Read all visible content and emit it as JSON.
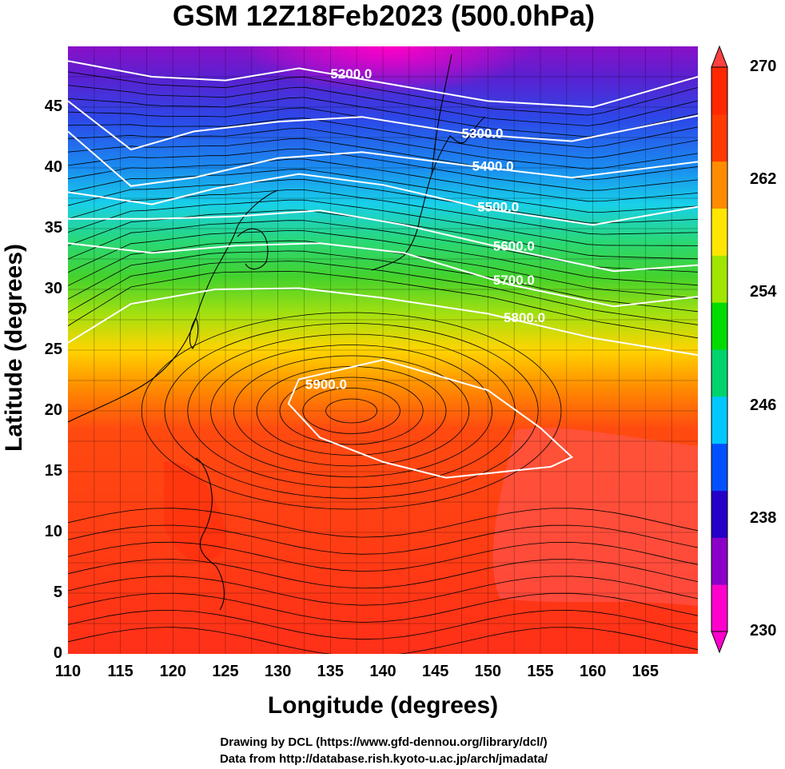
{
  "title": "GSM 12Z18Feb2023 (500.0hPa)",
  "xlabel": "Longitude (degrees)",
  "ylabel": "Latitude  (degrees)",
  "x_ticks": [
    "110",
    "115",
    "120",
    "125",
    "130",
    "135",
    "140",
    "145",
    "150",
    "155",
    "160",
    "165"
  ],
  "y_ticks": [
    "0",
    "5",
    "10",
    "15",
    "20",
    "25",
    "30",
    "35",
    "40",
    "45"
  ],
  "colorbar": {
    "ticks": [
      "270",
      "262",
      "254",
      "246",
      "238",
      "230"
    ],
    "min": 230,
    "max": 270,
    "colors": [
      "#ff00cc",
      "#8b00c8",
      "#2400c8",
      "#0050ff",
      "#00c8ff",
      "#00d26e",
      "#00dc00",
      "#a0e600",
      "#ffe600",
      "#ff8c00",
      "#ff3c00",
      "#ff2800"
    ]
  },
  "contours": [
    "5200.0",
    "5300.0",
    "5400.0",
    "5500.0",
    "5600.0",
    "5700.0",
    "5800.0",
    "5900.0"
  ],
  "credits": [
    "Drawing by DCL (https://www.gfd-dennou.org/library/dcl/)",
    "Data from http://database.rish.kyoto-u.ac.jp/arch/jmadata/"
  ],
  "chart_data": {
    "type": "heatmap",
    "title": "GSM 12Z18Feb2023 (500.0hPa)",
    "xlabel": "Longitude (degrees)",
    "ylabel": "Latitude  (degrees)",
    "xlim": [
      110,
      170
    ],
    "ylim": [
      0,
      50
    ],
    "value_range": [
      230,
      270
    ],
    "contour_levels": [
      5200,
      5300,
      5400,
      5500,
      5600,
      5700,
      5800,
      5900
    ],
    "series": [
      {
        "name": "5200.0",
        "points": [
          [
            110,
            48.8
          ],
          [
            118,
            47.5
          ],
          [
            125,
            47.2
          ],
          [
            132,
            48.2
          ],
          [
            140,
            47.0
          ],
          [
            150,
            45.5
          ],
          [
            160,
            45.0
          ],
          [
            170,
            47.5
          ]
        ]
      },
      {
        "name": "5300.0",
        "points": [
          [
            110,
            45.5
          ],
          [
            116,
            41.5
          ],
          [
            122,
            43.0
          ],
          [
            130,
            43.8
          ],
          [
            138,
            44.2
          ],
          [
            148,
            42.8
          ],
          [
            158,
            42.2
          ],
          [
            170,
            44.3
          ]
        ]
      },
      {
        "name": "5400.0",
        "points": [
          [
            110,
            43.0
          ],
          [
            116,
            38.5
          ],
          [
            122,
            39.2
          ],
          [
            130,
            40.8
          ],
          [
            138,
            41.3
          ],
          [
            148,
            40.2
          ],
          [
            158,
            39.2
          ],
          [
            170,
            40.5
          ]
        ]
      },
      {
        "name": "5500.0",
        "points": [
          [
            110,
            38.0
          ],
          [
            118,
            37.0
          ],
          [
            124,
            38.3
          ],
          [
            132,
            39.5
          ],
          [
            140,
            38.6
          ],
          [
            150,
            36.6
          ],
          [
            160,
            35.3
          ],
          [
            170,
            36.8
          ]
        ]
      },
      {
        "name": "5600.0",
        "points": [
          [
            110,
            35.8
          ],
          [
            118,
            35.8
          ],
          [
            126,
            36.0
          ],
          [
            134,
            36.5
          ],
          [
            142,
            35.3
          ],
          [
            152,
            33.3
          ],
          [
            162,
            31.5
          ],
          [
            170,
            32.0
          ]
        ]
      },
      {
        "name": "5700.0",
        "points": [
          [
            110,
            33.8
          ],
          [
            118,
            33.0
          ],
          [
            126,
            33.6
          ],
          [
            134,
            33.8
          ],
          [
            142,
            33.0
          ],
          [
            152,
            30.4
          ],
          [
            162,
            28.6
          ],
          [
            170,
            29.4
          ]
        ]
      },
      {
        "name": "5800.0",
        "points": [
          [
            110,
            25.6
          ],
          [
            116,
            28.8
          ],
          [
            124,
            30.0
          ],
          [
            132,
            30.1
          ],
          [
            140,
            29.3
          ],
          [
            150,
            28.0
          ],
          [
            160,
            26.0
          ],
          [
            170,
            24.6
          ]
        ]
      },
      {
        "name": "5900.0",
        "points": [
          [
            132,
            22.6
          ],
          [
            140,
            24.2
          ],
          [
            150,
            21.7
          ],
          [
            155,
            18.6
          ],
          [
            158,
            16.2
          ],
          [
            156,
            15.4
          ],
          [
            146,
            14.5
          ],
          [
            140,
            15.8
          ],
          [
            134,
            17.8
          ],
          [
            131,
            20.6
          ],
          [
            132,
            22.6
          ]
        ]
      }
    ]
  }
}
